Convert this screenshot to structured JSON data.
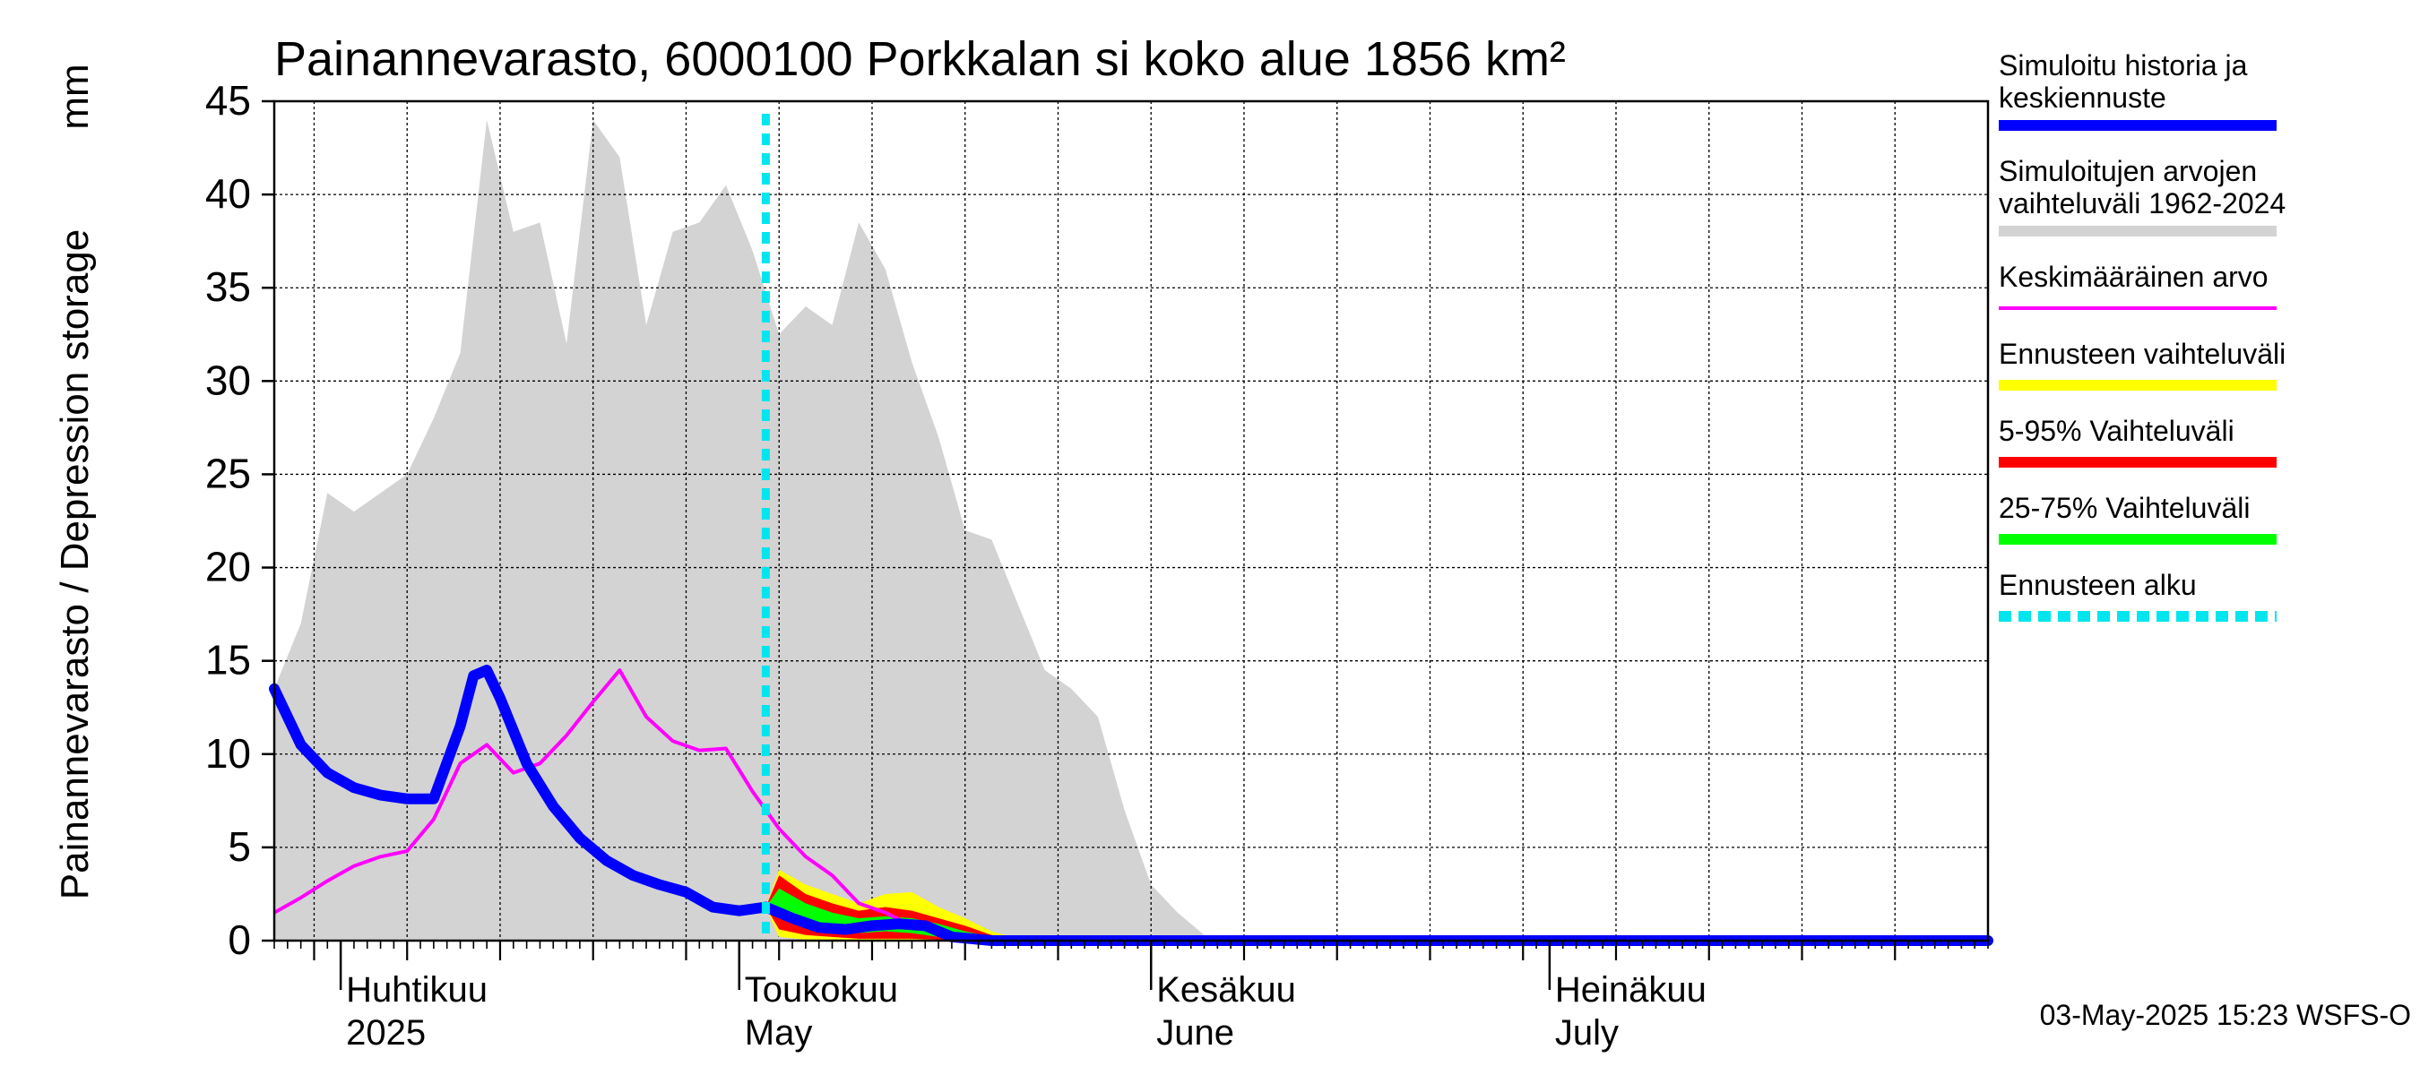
{
  "chart_data": {
    "type": "area",
    "title": "Painannevarasto, 6000100 Porkkalan si koko alue 1856 km²",
    "ylabel": "Painannevarasto / Depression storage",
    "yunit": "mm",
    "ylim": [
      0,
      45
    ],
    "yticks": [
      "0",
      "5",
      "10",
      "15",
      "20",
      "25",
      "30",
      "35",
      "40",
      "45"
    ],
    "xlim": [
      "2025-03-27",
      "2025-08-03"
    ],
    "grid": true,
    "month_labels": [
      {
        "date": "2025-04-01",
        "line1": "Huhtikuu",
        "line2": "2025"
      },
      {
        "date": "2025-05-01",
        "line1": "Toukokuu",
        "line2": "May"
      },
      {
        "date": "2025-06-01",
        "line1": "Kesäkuu",
        "line2": "June"
      },
      {
        "date": "2025-07-01",
        "line1": "Heinäkuu",
        "line2": "July"
      }
    ],
    "forecast_start": "2025-05-03",
    "legend_position": "right",
    "legend": [
      {
        "label1": "Simuloitu historia ja",
        "label2": "keskiennuste",
        "color": "#0000ff"
      },
      {
        "label1": "Simuloitujen arvojen",
        "label2": "vaihteluväli 1962-2024",
        "color": "#d3d3d3"
      },
      {
        "label1": "Keskimääräinen arvo",
        "label2": "",
        "color": "#ff00ff"
      },
      {
        "label1": "Ennusteen vaihteluväli",
        "label2": "",
        "color": "#ffff00"
      },
      {
        "label1": "5-95% Vaihteluväli",
        "label2": "",
        "color": "#ff0000"
      },
      {
        "label1": "25-75% Vaihteluväli",
        "label2": "",
        "color": "#00ff00"
      },
      {
        "label1": "Ennusteen alku",
        "label2": "",
        "color": "#00e5ee"
      }
    ],
    "range_band": {
      "dates": [
        "2025-03-27",
        "2025-03-29",
        "2025-03-31",
        "2025-04-02",
        "2025-04-04",
        "2025-04-06",
        "2025-04-08",
        "2025-04-10",
        "2025-04-12",
        "2025-04-14",
        "2025-04-16",
        "2025-04-18",
        "2025-04-20",
        "2025-04-22",
        "2025-04-24",
        "2025-04-26",
        "2025-04-28",
        "2025-04-30",
        "2025-05-02",
        "2025-05-04",
        "2025-05-06",
        "2025-05-08",
        "2025-05-10",
        "2025-05-12",
        "2025-05-14",
        "2025-05-16",
        "2025-05-18",
        "2025-05-20",
        "2025-05-22",
        "2025-05-24",
        "2025-05-26",
        "2025-05-28",
        "2025-05-30",
        "2025-06-01",
        "2025-06-03",
        "2025-06-05",
        "2025-06-10",
        "2025-06-15",
        "2025-06-20",
        "2025-06-25",
        "2025-07-01",
        "2025-07-10",
        "2025-07-20",
        "2025-08-03"
      ],
      "upper": [
        13.5,
        17,
        24,
        23,
        24,
        25,
        28,
        31.5,
        44,
        38,
        38.5,
        32,
        44,
        42,
        33,
        38,
        38.5,
        40.5,
        37,
        32.5,
        34,
        33,
        38.5,
        36,
        31,
        27,
        22,
        21.5,
        18,
        14.5,
        13.5,
        12,
        7,
        3,
        1.5,
        0.3,
        0.2,
        0.2,
        0.2,
        0.2,
        0.2,
        0.2,
        0.2,
        0.2
      ],
      "lower": [
        0,
        0,
        0,
        0,
        0,
        0,
        0,
        0,
        0,
        0,
        0,
        0,
        0,
        0,
        0,
        0,
        0,
        0,
        0,
        0,
        0,
        0,
        0,
        0,
        0,
        0,
        0,
        0,
        0,
        0,
        0,
        0,
        0,
        0,
        0,
        0,
        0,
        0,
        0,
        0,
        0,
        0,
        0,
        0
      ]
    },
    "series": [
      {
        "name": "Simuloitu historia ja keskiennuste",
        "color": "#0000ff",
        "x": [
          "2025-03-27",
          "2025-03-29",
          "2025-03-31",
          "2025-04-02",
          "2025-04-04",
          "2025-04-06",
          "2025-04-08",
          "2025-04-10",
          "2025-04-11",
          "2025-04-12",
          "2025-04-13",
          "2025-04-15",
          "2025-04-17",
          "2025-04-19",
          "2025-04-21",
          "2025-04-23",
          "2025-04-25",
          "2025-04-27",
          "2025-04-29",
          "2025-05-01",
          "2025-05-03",
          "2025-05-05",
          "2025-05-07",
          "2025-05-09",
          "2025-05-11",
          "2025-05-13",
          "2025-05-15",
          "2025-05-17",
          "2025-05-20",
          "2025-05-25",
          "2025-06-01",
          "2025-07-01",
          "2025-08-03"
        ],
        "y": [
          13.5,
          10.5,
          9,
          8.2,
          7.8,
          7.6,
          7.6,
          11.5,
          14.2,
          14.5,
          13,
          9.5,
          7.2,
          5.5,
          4.3,
          3.5,
          3.0,
          2.6,
          1.8,
          1.6,
          1.8,
          1.2,
          0.7,
          0.6,
          0.8,
          0.9,
          0.8,
          0.2,
          0.0,
          0.0,
          0.0,
          0.0,
          0.0
        ]
      },
      {
        "name": "Keskimääräinen arvo",
        "color": "#ff00ff",
        "x": [
          "2025-03-27",
          "2025-03-29",
          "2025-03-31",
          "2025-04-02",
          "2025-04-04",
          "2025-04-06",
          "2025-04-08",
          "2025-04-10",
          "2025-04-12",
          "2025-04-14",
          "2025-04-16",
          "2025-04-18",
          "2025-04-20",
          "2025-04-22",
          "2025-04-24",
          "2025-04-26",
          "2025-04-28",
          "2025-04-30",
          "2025-05-02",
          "2025-05-04",
          "2025-05-06",
          "2025-05-08",
          "2025-05-10",
          "2025-05-12",
          "2025-05-14",
          "2025-05-16",
          "2025-05-18",
          "2025-05-20",
          "2025-05-25",
          "2025-06-01",
          "2025-07-01",
          "2025-08-03"
        ],
        "y": [
          1.5,
          2.3,
          3.2,
          4.0,
          4.5,
          4.8,
          6.5,
          9.5,
          10.5,
          9.0,
          9.5,
          11,
          12.8,
          14.5,
          12,
          10.7,
          10.2,
          10.3,
          8,
          6,
          4.5,
          3.5,
          2.0,
          1.5,
          0.8,
          0.4,
          0.2,
          0.1,
          0.05,
          0.05,
          0.05,
          0.05
        ]
      }
    ],
    "forecast_bands": {
      "dates": [
        "2025-05-03",
        "2025-05-04",
        "2025-05-06",
        "2025-05-08",
        "2025-05-10",
        "2025-05-12",
        "2025-05-14",
        "2025-05-16",
        "2025-05-18",
        "2025-05-20",
        "2025-05-22"
      ],
      "yellow_upper": [
        1.8,
        3.8,
        3.0,
        2.5,
        2.0,
        2.5,
        2.6,
        1.8,
        1.2,
        0.5,
        0.1
      ],
      "red_upper": [
        1.8,
        3.5,
        2.5,
        2.0,
        1.6,
        1.8,
        1.6,
        1.2,
        0.8,
        0.3,
        0.05
      ],
      "green_upper": [
        1.8,
        2.8,
        2.0,
        1.5,
        1.2,
        1.3,
        1.2,
        0.9,
        0.5,
        0.2,
        0.0
      ],
      "green_lower": [
        1.8,
        1.3,
        0.8,
        0.5,
        0.4,
        0.5,
        0.4,
        0.2,
        0.1,
        0.0,
        0.0
      ],
      "red_lower": [
        1.8,
        0.6,
        0.3,
        0.2,
        0.1,
        0.1,
        0.1,
        0.05,
        0.0,
        0.0,
        0.0
      ],
      "yellow_lower": [
        1.8,
        0.2,
        0.05,
        0.0,
        0.0,
        0.0,
        0.0,
        0.0,
        0.0,
        0.0,
        0.0
      ]
    },
    "footer": "03-May-2025 15:23 WSFS-O"
  }
}
